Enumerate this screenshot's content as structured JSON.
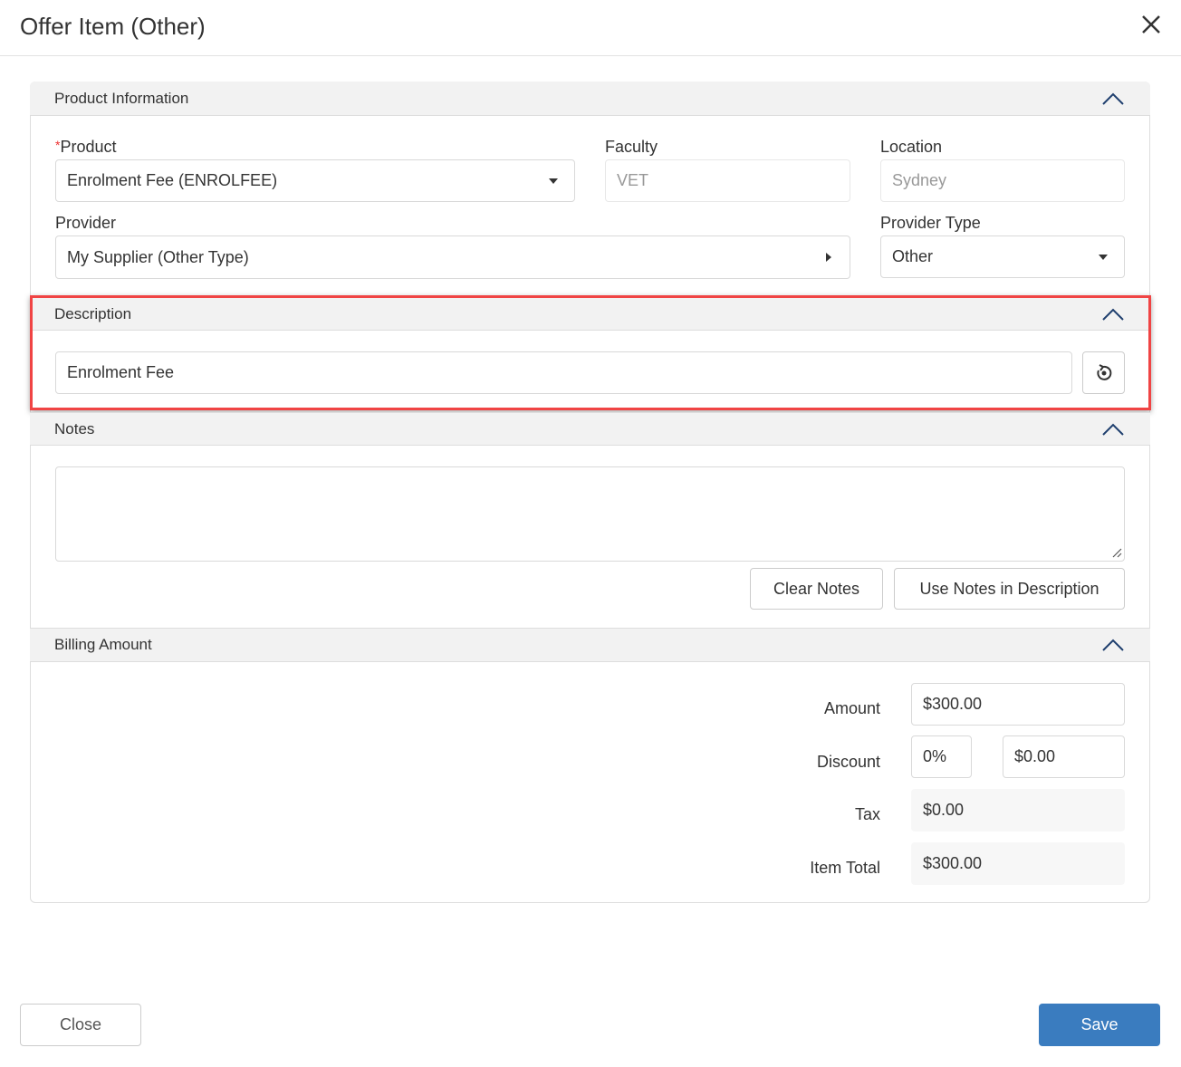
{
  "dialog": {
    "title": "Offer Item (Other)",
    "close_icon": "close-icon"
  },
  "product_information": {
    "header": "Product Information",
    "product": {
      "required_mark": "*",
      "label": "Product",
      "value": "Enrolment Fee (ENROLFEE)"
    },
    "faculty": {
      "label": "Faculty",
      "value": "VET"
    },
    "location": {
      "label": "Location",
      "value": "Sydney"
    },
    "provider": {
      "label": "Provider",
      "value": "My Supplier (Other Type)"
    },
    "provider_type": {
      "label": "Provider Type",
      "value": "Other"
    }
  },
  "description": {
    "header": "Description",
    "value": "Enrolment Fee",
    "reset_icon": "reset-icon",
    "highlight_color": "#f04444"
  },
  "notes": {
    "header": "Notes",
    "value": "",
    "clear_label": "Clear Notes",
    "use_label": "Use Notes in Description"
  },
  "billing": {
    "header": "Billing Amount",
    "amount": {
      "label": "Amount",
      "value": "$300.00"
    },
    "discount": {
      "label": "Discount",
      "percent": "0%",
      "value": "$0.00"
    },
    "tax": {
      "label": "Tax",
      "value": "$0.00"
    },
    "item_total": {
      "label": "Item Total",
      "value": "$300.00"
    }
  },
  "footer": {
    "close_label": "Close",
    "save_label": "Save",
    "save_color": "#3a7cbf"
  }
}
